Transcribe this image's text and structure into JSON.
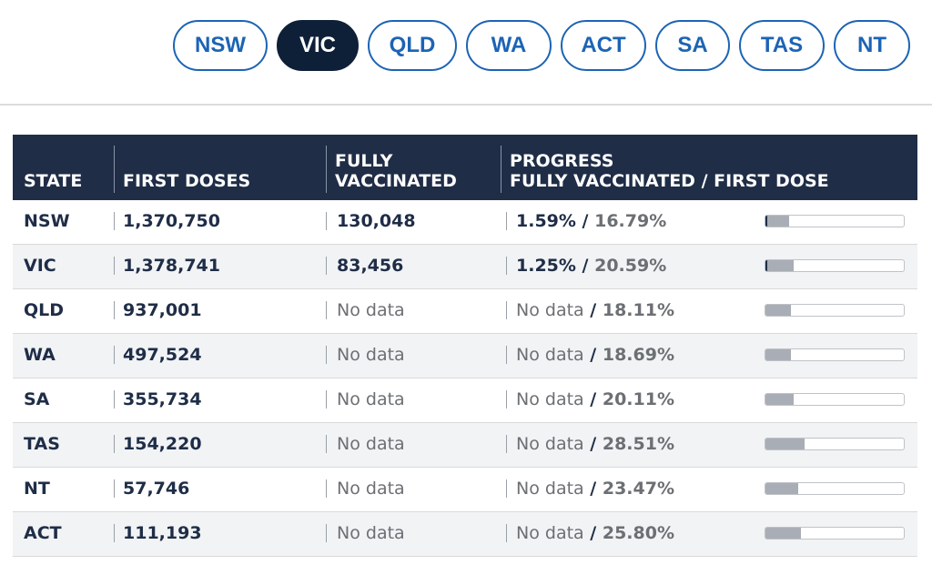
{
  "tabs": [
    {
      "label": "NSW",
      "active": false
    },
    {
      "label": "VIC",
      "active": true
    },
    {
      "label": "QLD",
      "active": false
    },
    {
      "label": "WA",
      "active": false
    },
    {
      "label": "ACT",
      "active": false
    },
    {
      "label": "SA",
      "active": false
    },
    {
      "label": "TAS",
      "active": false
    },
    {
      "label": "NT",
      "active": false
    }
  ],
  "table": {
    "headers": {
      "state": "STATE",
      "first_doses": "FIRST DOSES",
      "fully_line1": "FULLY",
      "fully_line2": "VACCINATED",
      "progress_line1": "PROGRESS",
      "progress_line2": "FULLY VACCINATED / FIRST DOSE"
    },
    "rows": [
      {
        "state": "NSW",
        "first_doses": "1,370,750",
        "fully": "130,048",
        "fully_pct": "1.59%",
        "first_pct": "16.79%",
        "fully_frac": 0.0159,
        "first_frac": 0.1679
      },
      {
        "state": "VIC",
        "first_doses": "1,378,741",
        "fully": "83,456",
        "fully_pct": "1.25%",
        "first_pct": "20.59%",
        "fully_frac": 0.0125,
        "first_frac": 0.2059
      },
      {
        "state": "QLD",
        "first_doses": "937,001",
        "fully": "No data",
        "fully_pct": "No data",
        "first_pct": "18.11%",
        "fully_frac": 0,
        "first_frac": 0.1811
      },
      {
        "state": "WA",
        "first_doses": "497,524",
        "fully": "No data",
        "fully_pct": "No data",
        "first_pct": "18.69%",
        "fully_frac": 0,
        "first_frac": 0.1869
      },
      {
        "state": "SA",
        "first_doses": "355,734",
        "fully": "No data",
        "fully_pct": "No data",
        "first_pct": "20.11%",
        "fully_frac": 0,
        "first_frac": 0.2011
      },
      {
        "state": "TAS",
        "first_doses": "154,220",
        "fully": "No data",
        "fully_pct": "No data",
        "first_pct": "28.51%",
        "fully_frac": 0,
        "first_frac": 0.2851
      },
      {
        "state": "NT",
        "first_doses": "57,746",
        "fully": "No data",
        "fully_pct": "No data",
        "first_pct": "23.47%",
        "fully_frac": 0,
        "first_frac": 0.2347
      },
      {
        "state": "ACT",
        "first_doses": "111,193",
        "fully": "No data",
        "fully_pct": "No data",
        "first_pct": "25.80%",
        "fully_frac": 0,
        "first_frac": 0.258
      }
    ]
  },
  "colors": {
    "accent": "#1c64b4",
    "header_bg": "#1f2d47",
    "active_tab_bg": "#0e2038",
    "first_dose_bar": "#a9adb5",
    "fully_bar": "#1f2d47"
  }
}
